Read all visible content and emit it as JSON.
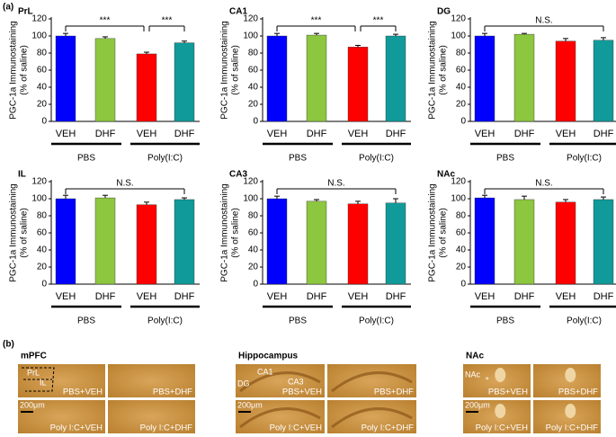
{
  "figure_labels": [
    "(a)",
    "(b)"
  ],
  "chart_data": [
    {
      "type": "bar",
      "title": "PrL",
      "ylabel": [
        "PGC-1a Immunostaining",
        "(% of saline)"
      ],
      "categories": [
        "VEH",
        "DHF",
        "VEH",
        "DHF"
      ],
      "groups": [
        "PBS",
        "Poly(I:C)"
      ],
      "colors": [
        "#0000ff",
        "#8dc63f",
        "#ff0000",
        "#109a9a"
      ],
      "values": [
        100,
        97,
        79,
        92
      ],
      "errors": [
        3,
        2,
        2,
        2
      ],
      "ylim": [
        0,
        120
      ],
      "yticks": [
        0,
        20,
        40,
        60,
        80,
        100,
        120
      ],
      "annotations": [
        "***",
        "***"
      ]
    },
    {
      "type": "bar",
      "title": "CA1",
      "ylabel": [
        "PGC-1a Immunostaining",
        "(% of saline)"
      ],
      "categories": [
        "VEH",
        "DHF",
        "VEH",
        "DHF"
      ],
      "groups": [
        "PBS",
        "Poly(I:C)"
      ],
      "colors": [
        "#0000ff",
        "#8dc63f",
        "#ff0000",
        "#109a9a"
      ],
      "values": [
        100,
        101,
        87,
        100
      ],
      "errors": [
        3,
        2,
        2,
        2
      ],
      "ylim": [
        0,
        120
      ],
      "yticks": [
        0,
        20,
        40,
        60,
        80,
        100,
        120
      ],
      "annotations": [
        "***",
        "***"
      ]
    },
    {
      "type": "bar",
      "title": "DG",
      "ylabel": [
        "PGC-1a Immunostaining",
        "(% of saline)"
      ],
      "categories": [
        "VEH",
        "DHF",
        "VEH",
        "DHF"
      ],
      "groups": [
        "PBS",
        "Poly(I:C)"
      ],
      "colors": [
        "#0000ff",
        "#8dc63f",
        "#ff0000",
        "#109a9a"
      ],
      "values": [
        100,
        102,
        94,
        95
      ],
      "errors": [
        3,
        1,
        3,
        3
      ],
      "ylim": [
        0,
        120
      ],
      "yticks": [
        0,
        20,
        40,
        60,
        80,
        100,
        120
      ],
      "annotations": [
        "N.S."
      ]
    },
    {
      "type": "bar",
      "title": "IL",
      "ylabel": [
        "PGC-1a Immunostaining",
        "(% of saline)"
      ],
      "categories": [
        "VEH",
        "DHF",
        "VEH",
        "DHF"
      ],
      "groups": [
        "PBS",
        "Poly(I:C)"
      ],
      "colors": [
        "#0000ff",
        "#8dc63f",
        "#ff0000",
        "#109a9a"
      ],
      "values": [
        100,
        101,
        93,
        99
      ],
      "errors": [
        4,
        3,
        3,
        2
      ],
      "ylim": [
        0,
        120
      ],
      "yticks": [
        0,
        20,
        40,
        60,
        80,
        100,
        120
      ],
      "annotations": [
        "N.S."
      ]
    },
    {
      "type": "bar",
      "title": "CA3",
      "ylabel": [
        "PGC-1a Immunostaining",
        "(% of saline)"
      ],
      "categories": [
        "VEH",
        "DHF",
        "VEH",
        "DHF"
      ],
      "groups": [
        "PBS",
        "Poly(I:C)"
      ],
      "colors": [
        "#0000ff",
        "#8dc63f",
        "#ff0000",
        "#109a9a"
      ],
      "values": [
        100,
        97,
        94,
        95
      ],
      "errors": [
        3,
        2,
        3,
        5
      ],
      "ylim": [
        0,
        120
      ],
      "yticks": [
        0,
        20,
        40,
        60,
        80,
        100,
        120
      ],
      "annotations": [
        "N.S."
      ]
    },
    {
      "type": "bar",
      "title": "NAc",
      "ylabel": [
        "PGC-1a Immunostaining",
        "(% of saline)"
      ],
      "categories": [
        "VEH",
        "DHF",
        "VEH",
        "DHF"
      ],
      "groups": [
        "PBS",
        "Poly(I:C)"
      ],
      "colors": [
        "#0000ff",
        "#8dc63f",
        "#ff0000",
        "#109a9a"
      ],
      "values": [
        101,
        99,
        96,
        99
      ],
      "errors": [
        3,
        4,
        3,
        3
      ],
      "ylim": [
        0,
        120
      ],
      "yticks": [
        0,
        20,
        40,
        60,
        80,
        100,
        120
      ],
      "annotations": [
        "N.S."
      ]
    }
  ],
  "images": [
    {
      "title": "mPFC",
      "tiles": [
        "PBS+VEH",
        "PBS+DHF",
        "Poly I:C+VEH",
        "Poly I:C+DHF"
      ],
      "regions": [
        "PrL",
        "IL"
      ],
      "scale": "200μm"
    },
    {
      "title": "Hippocampus",
      "tiles": [
        "PBS+VEH",
        "PBS+DHF",
        "Poly I:C+VEH",
        "Poly I:C+DHF"
      ],
      "regions": [
        "DG",
        "CA1",
        "CA3"
      ],
      "scale": "200μm"
    },
    {
      "title": "NAc",
      "tiles": [
        "PBS+VEH",
        "PBS+DHF",
        "Poly I:C+VEH",
        "Poly I:C+DHF"
      ],
      "regions": [
        "NAc",
        "*"
      ],
      "scale": "200μm"
    }
  ]
}
